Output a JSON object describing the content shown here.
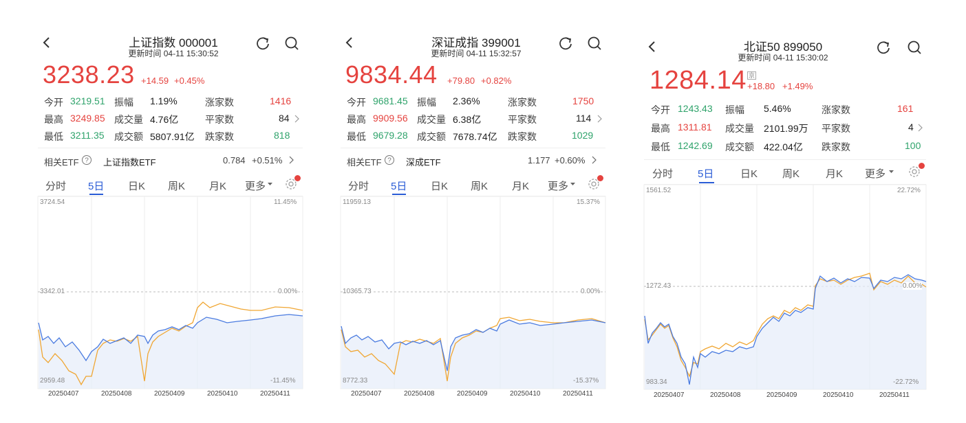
{
  "panels": [
    {
      "title": "上证指数 000001",
      "update_time": "更新时间 04-11 15:30:52",
      "price": "3238.23",
      "change": "+14.59",
      "change_pct": "+0.45%",
      "stats": {
        "open_label": "今开",
        "open": "3219.51",
        "high_label": "最高",
        "high": "3249.85",
        "low_label": "最低",
        "low": "3211.35",
        "amp_label": "振幅",
        "amp": "1.19%",
        "vol_label": "成交量",
        "vol": "4.76亿",
        "amt_label": "成交额",
        "amt": "5807.91亿",
        "up_label": "涨家数",
        "up": "1416",
        "flat_label": "平家数",
        "flat": "84",
        "down_label": "跌家数",
        "down": "818"
      },
      "etf": {
        "label": "相关ETF",
        "name": "上证指数ETF",
        "price": "0.784",
        "pct": "+0.51%"
      },
      "tabs": [
        "分时",
        "5日",
        "日K",
        "周K",
        "月K",
        "更多"
      ],
      "active_tab": "5日",
      "axis": {
        "top_left": "3724.54",
        "mid_left": "3342.01",
        "bottom_left": "2959.48",
        "top_right": "11.45%",
        "mid_right": "0.00%",
        "bottom_right": "-11.45%"
      },
      "dates": [
        "20250407",
        "20250408",
        "20250409",
        "20250410",
        "20250411"
      ]
    },
    {
      "title": "深证成指 399001",
      "update_time": "更新时间 04-11 15:32:57",
      "price": "9834.44",
      "change": "+79.80",
      "change_pct": "+0.82%",
      "stats": {
        "open_label": "今开",
        "open": "9681.45",
        "high_label": "最高",
        "high": "9909.56",
        "low_label": "最低",
        "low": "9679.28",
        "amp_label": "振幅",
        "amp": "2.36%",
        "vol_label": "成交量",
        "vol": "6.38亿",
        "amt_label": "成交额",
        "amt": "7678.74亿",
        "up_label": "涨家数",
        "up": "1750",
        "flat_label": "平家数",
        "flat": "114",
        "down_label": "跌家数",
        "down": "1029"
      },
      "etf": {
        "label": "相关ETF",
        "name": "深成ETF",
        "price": "1.177",
        "pct": "+0.60%"
      },
      "tabs": [
        "分时",
        "5日",
        "日K",
        "周K",
        "月K",
        "更多"
      ],
      "active_tab": "5日",
      "axis": {
        "top_left": "11959.13",
        "mid_left": "10365.73",
        "bottom_left": "8772.33",
        "top_right": "15.37%",
        "mid_right": "0.00%",
        "bottom_right": "-15.37%"
      },
      "dates": [
        "20250407",
        "20250408",
        "20250409",
        "20250410",
        "20250411"
      ]
    },
    {
      "title": "北证50 899050",
      "update_time": "更新时间 04-11 15:30:02",
      "price": "1284.14",
      "badge": "京",
      "change": "+18.80",
      "change_pct": "+1.49%",
      "stats": {
        "open_label": "今开",
        "open": "1243.43",
        "high_label": "最高",
        "high": "1311.81",
        "low_label": "最低",
        "low": "1242.69",
        "amp_label": "振幅",
        "amp": "5.46%",
        "vol_label": "成交量",
        "vol": "2101.99万",
        "amt_label": "成交额",
        "amt": "422.04亿",
        "up_label": "涨家数",
        "up": "161",
        "flat_label": "平家数",
        "flat": "4",
        "down_label": "跌家数",
        "down": "100"
      },
      "tabs": [
        "分时",
        "5日",
        "日K",
        "周K",
        "月K",
        "更多"
      ],
      "active_tab": "5日",
      "axis": {
        "top_left": "1561.52",
        "mid_left": "1272.43",
        "bottom_left": "983.34",
        "top_right": "22.72%",
        "mid_right": "0.00%",
        "bottom_right": "-22.72%"
      },
      "dates": [
        "20250407",
        "20250408",
        "20250409",
        "20250410",
        "20250411"
      ]
    }
  ],
  "colors": {
    "up": "#e5433f",
    "down": "#2fa36b",
    "price_line": "#4a7be0",
    "avg_line": "#f0a632",
    "accent": "#2a5cd6"
  },
  "chart_data": [
    {
      "type": "line",
      "title": "上证指数 000001 5日",
      "ylim": [
        2959.48,
        3724.54
      ],
      "x": [
        "20250407",
        "20250408",
        "20250409",
        "20250410",
        "20250411"
      ],
      "series": [
        {
          "values": [
            3096.58,
            3145.55,
            3186.81,
            3223.64,
            3238.23
          ]
        }
      ]
    },
    {
      "type": "line",
      "title": "深证成指 399001 5日",
      "ylim": [
        8772.33,
        11959.13
      ],
      "x": [
        "20250407",
        "20250408",
        "20250409",
        "20250410",
        "20250411"
      ],
      "series": [
        {
          "values": [
            9364.3,
            9450.0,
            9723.0,
            9754.0,
            9834.44
          ]
        }
      ]
    },
    {
      "type": "line",
      "title": "北证50 899050 5日",
      "ylim": [
        983.34,
        1561.52
      ],
      "x": [
        "20250407",
        "20250408",
        "20250409",
        "20250410",
        "20250411"
      ],
      "series": [
        {
          "values": [
            1110.0,
            1140.0,
            1220.0,
            1270.0,
            1284.14
          ]
        }
      ]
    }
  ]
}
